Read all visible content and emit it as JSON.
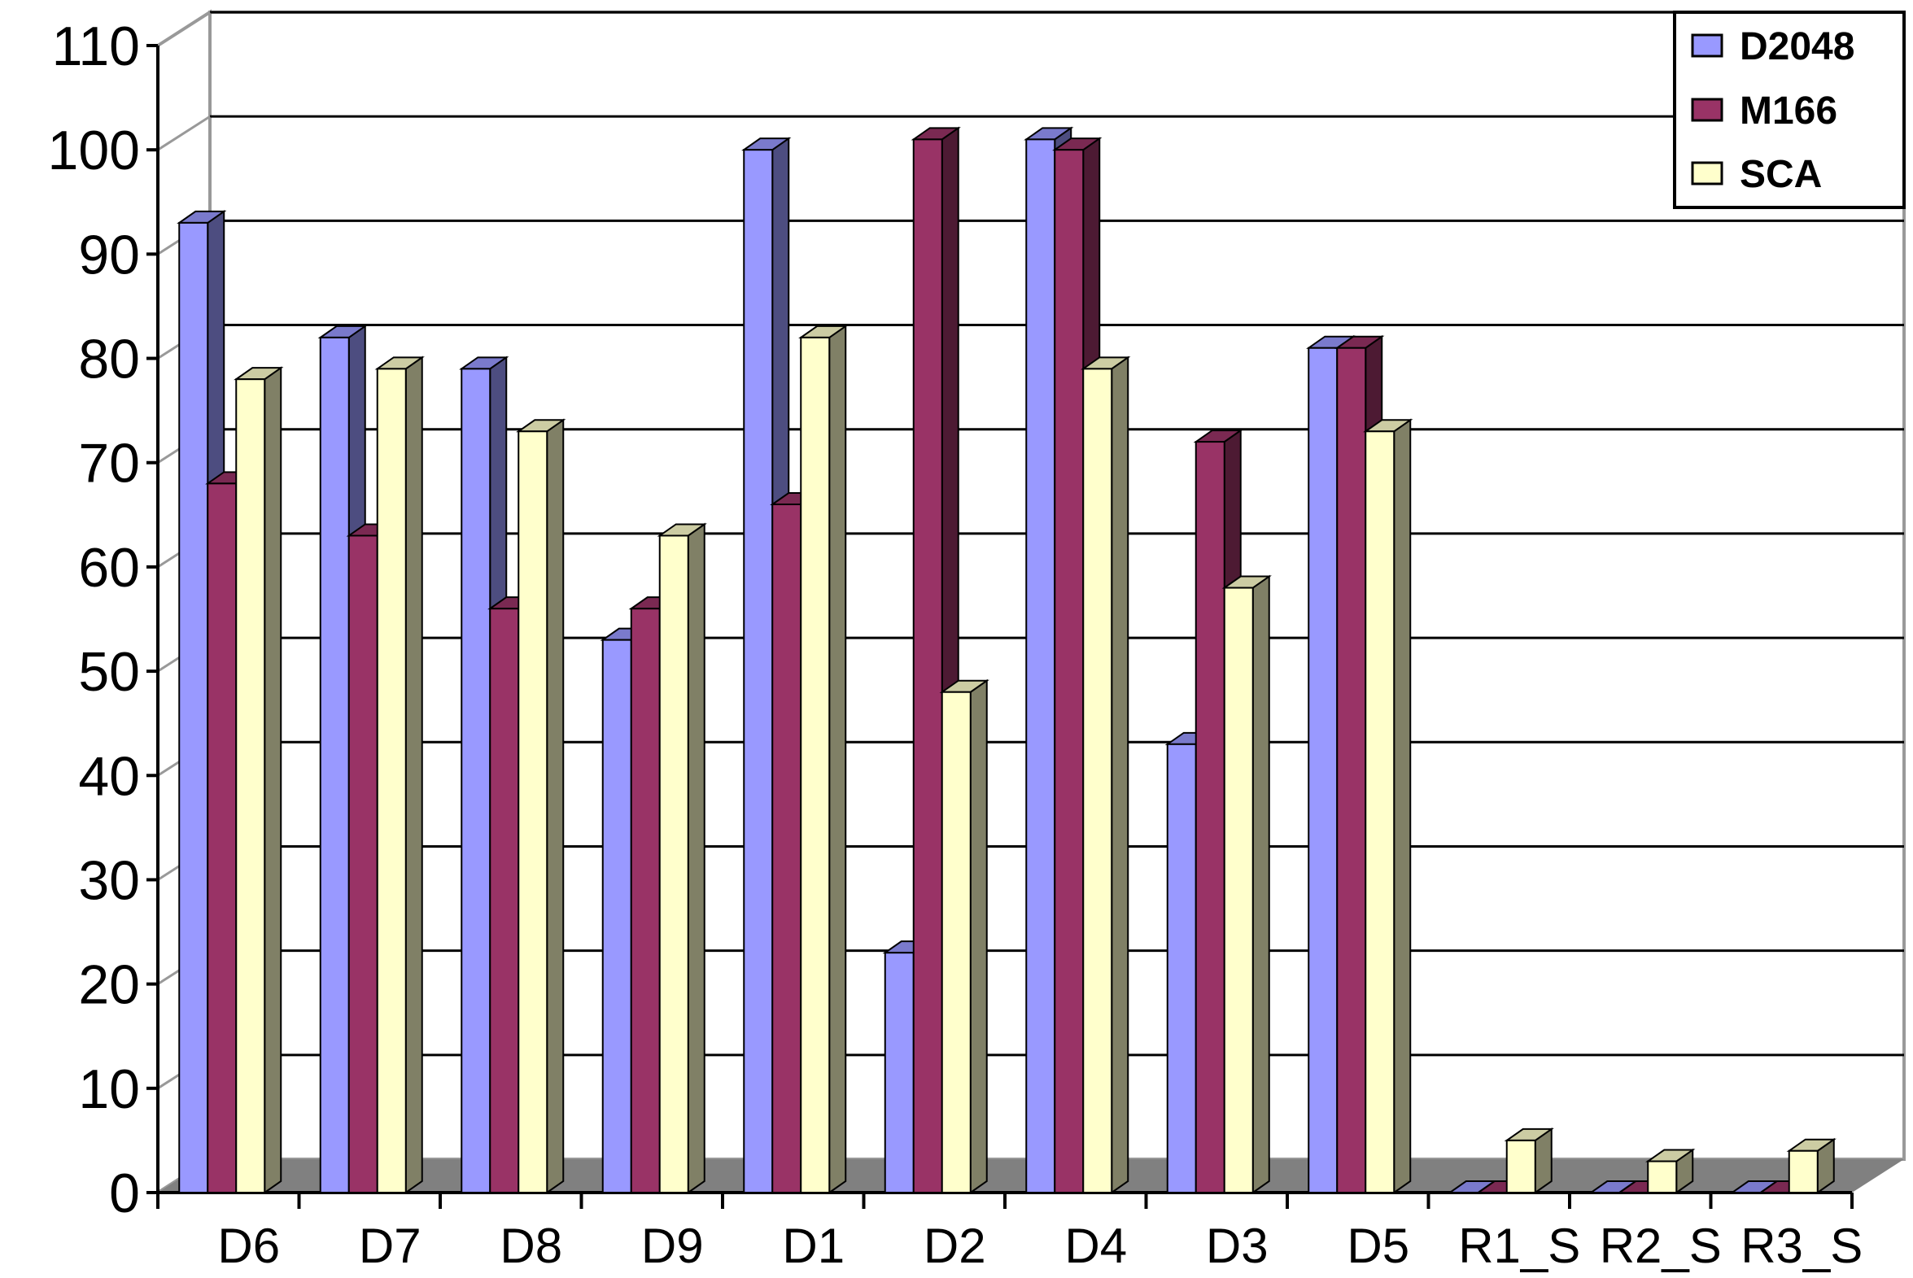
{
  "chart_data": {
    "type": "bar",
    "title": "",
    "xlabel": "",
    "ylabel": "",
    "ylim": [
      0,
      110
    ],
    "y_ticks": [
      "0",
      "10",
      "20",
      "30",
      "40",
      "50",
      "60",
      "70",
      "80",
      "90",
      "100",
      "110"
    ],
    "grid": true,
    "legend_position": "top-right",
    "categories": [
      "D6",
      "D7",
      "D8",
      "D9",
      "D1",
      "D2",
      "D4",
      "D3",
      "D5",
      "R1_S",
      "R2_S",
      "R3_S"
    ],
    "series": [
      {
        "name": "D2048",
        "color": "#9999ff",
        "values": [
          93,
          82,
          79,
          53,
          100,
          23,
          101,
          43,
          81,
          0,
          0,
          0
        ]
      },
      {
        "name": "M166",
        "color": "#993366",
        "values": [
          68,
          63,
          56,
          56,
          66,
          101,
          100,
          72,
          81,
          0,
          0,
          0
        ]
      },
      {
        "name": "SCA",
        "color": "#ffffcc",
        "values": [
          78,
          79,
          73,
          63,
          82,
          48,
          79,
          58,
          73,
          5,
          3,
          4
        ]
      }
    ]
  }
}
